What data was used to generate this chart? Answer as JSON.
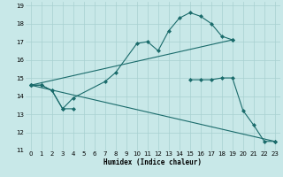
{
  "xlabel": "Humidex (Indice chaleur)",
  "bg_color": "#c8e8e8",
  "grid_color": "#a8d0d0",
  "line_color": "#1a6b6b",
  "xlim": [
    -0.5,
    23.5
  ],
  "ylim": [
    11,
    19.2
  ],
  "xticks": [
    0,
    1,
    2,
    3,
    4,
    5,
    6,
    7,
    8,
    9,
    10,
    11,
    12,
    13,
    14,
    15,
    16,
    17,
    18,
    19,
    20,
    21,
    22,
    23
  ],
  "yticks": [
    11,
    12,
    13,
    14,
    15,
    16,
    17,
    18,
    19
  ],
  "line1_x": [
    0,
    1,
    2,
    3,
    4,
    7,
    8,
    10,
    11,
    12,
    13,
    14,
    15,
    16,
    17,
    18,
    19
  ],
  "line1_y": [
    14.6,
    14.6,
    14.3,
    13.3,
    13.9,
    14.8,
    15.3,
    16.9,
    17.0,
    16.5,
    17.6,
    18.3,
    18.6,
    18.4,
    18.0,
    17.3,
    17.1
  ],
  "line2_x": [
    0,
    1,
    2,
    3,
    4,
    15,
    16,
    17,
    18,
    19,
    20,
    21,
    22,
    23
  ],
  "line2_y": [
    14.6,
    14.6,
    14.3,
    13.3,
    13.3,
    14.9,
    14.9,
    14.9,
    15.0,
    15.0,
    13.2,
    12.4,
    11.5,
    11.5
  ],
  "line3_x": [
    0,
    19
  ],
  "line3_y": [
    14.6,
    17.1
  ],
  "line4_x": [
    0,
    23
  ],
  "line4_y": [
    14.6,
    11.5
  ]
}
